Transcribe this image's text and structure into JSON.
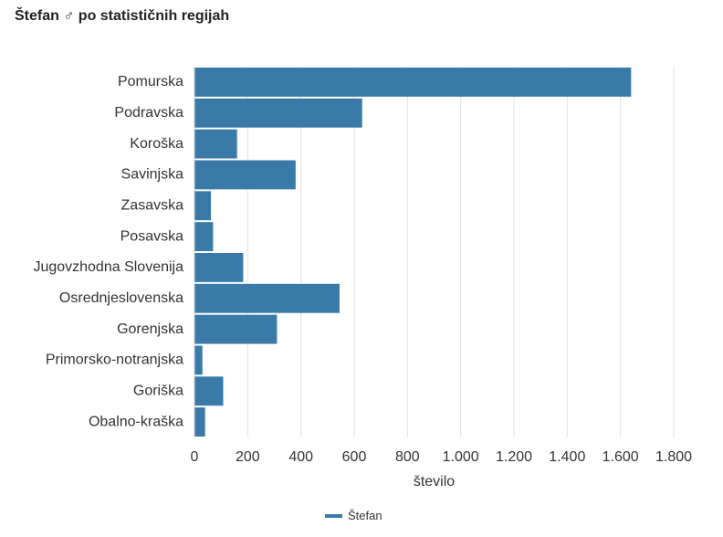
{
  "chart_data": {
    "type": "bar",
    "orientation": "horizontal",
    "title": "Štefan ♂ po statističnih regijah",
    "title_icon": "male-symbol-icon",
    "categories": [
      "Pomurska",
      "Podravska",
      "Koroška",
      "Savinjska",
      "Zasavska",
      "Posavska",
      "Jugovzhodna Slovenija",
      "Osrednjeslovenska",
      "Gorenjska",
      "Primorsko-notranjska",
      "Goriška",
      "Obalno-kraška"
    ],
    "series": [
      {
        "name": "Štefan",
        "color": "#3a7aa8",
        "values": [
          1640,
          630,
          160,
          380,
          62,
          70,
          183,
          545,
          310,
          30,
          108,
          40
        ]
      }
    ],
    "xlabel": "število",
    "ylabel": "",
    "xlim": [
      0,
      1800
    ],
    "xticks": [
      0,
      200,
      400,
      600,
      800,
      1000,
      1200,
      1400,
      1600,
      1800
    ],
    "xtick_labels": [
      "0",
      "200",
      "400",
      "600",
      "800",
      "1.000",
      "1.200",
      "1.400",
      "1.600",
      "1.800"
    ],
    "grid": true,
    "legend_position": "bottom-center"
  }
}
